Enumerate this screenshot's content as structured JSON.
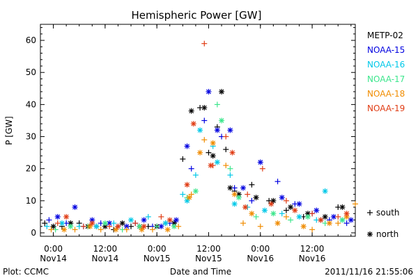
{
  "chart_data": {
    "type": "scatter",
    "title": "Hemispheric Power [GW]",
    "xlabel": "Date and Time",
    "ylabel": "P [GW]",
    "xlim": [
      "2011-11-13T21:00",
      "2011-11-16T22:00"
    ],
    "ylim": [
      0,
      65
    ],
    "y_ticks": [
      0,
      10,
      20,
      30,
      40,
      50,
      60
    ],
    "x_ticks": [
      {
        "time": "2011-11-14T00:00",
        "label1": "0:00",
        "label2": "Nov14"
      },
      {
        "time": "2011-11-14T12:00",
        "label1": "12:00",
        "label2": "Nov14"
      },
      {
        "time": "2011-11-15T00:00",
        "label1": "0:00",
        "label2": "Nov15"
      },
      {
        "time": "2011-11-15T12:00",
        "label1": "12:00",
        "label2": "Nov15"
      },
      {
        "time": "2011-11-16T00:00",
        "label1": "0:00",
        "label2": "Nov16"
      },
      {
        "time": "2011-11-16T12:00",
        "label1": "12:00",
        "label2": "Nov16"
      }
    ],
    "marker_legend": [
      {
        "symbol": "+",
        "label": "south"
      },
      {
        "symbol": "*",
        "label": "north"
      }
    ],
    "series": [
      {
        "name": "METP-02",
        "color": "#000000",
        "south": [
          [
            "2011-11-13T22:00",
            3
          ],
          [
            "2011-11-14T02:00",
            2
          ],
          [
            "2011-11-14T06:00",
            3
          ],
          [
            "2011-11-14T10:00",
            2
          ],
          [
            "2011-11-14T14:00",
            1
          ],
          [
            "2011-11-14T18:00",
            2
          ],
          [
            "2011-11-14T22:00",
            2
          ],
          [
            "2011-11-15T02:00",
            3
          ],
          [
            "2011-11-15T06:00",
            23
          ],
          [
            "2011-11-15T10:00",
            39
          ],
          [
            "2011-11-15T12:00",
            25
          ],
          [
            "2011-11-15T14:00",
            33
          ],
          [
            "2011-11-15T16:00",
            26
          ],
          [
            "2011-11-15T18:00",
            13
          ],
          [
            "2011-11-15T22:00",
            15
          ],
          [
            "2011-11-16T02:00",
            10
          ],
          [
            "2011-11-16T06:00",
            7
          ],
          [
            "2011-11-16T10:00",
            5
          ],
          [
            "2011-11-16T14:00",
            4
          ],
          [
            "2011-11-16T18:00",
            8
          ]
        ],
        "north": [
          [
            "2011-11-14T00:00",
            2
          ],
          [
            "2011-11-14T04:00",
            3
          ],
          [
            "2011-11-14T08:00",
            2
          ],
          [
            "2011-11-14T12:00",
            2
          ],
          [
            "2011-11-14T16:00",
            3
          ],
          [
            "2011-11-14T20:00",
            2
          ],
          [
            "2011-11-15T00:00",
            2
          ],
          [
            "2011-11-15T04:00",
            3
          ],
          [
            "2011-11-15T08:00",
            38
          ],
          [
            "2011-11-15T11:00",
            39
          ],
          [
            "2011-11-15T13:00",
            24
          ],
          [
            "2011-11-15T15:00",
            44
          ],
          [
            "2011-11-15T17:00",
            14
          ],
          [
            "2011-11-15T19:00",
            12
          ],
          [
            "2011-11-15T23:00",
            11
          ],
          [
            "2011-11-16T03:00",
            10
          ],
          [
            "2011-11-16T07:00",
            8
          ],
          [
            "2011-11-16T11:00",
            6
          ],
          [
            "2011-11-16T15:00",
            5
          ],
          [
            "2011-11-16T19:00",
            8
          ]
        ]
      },
      {
        "name": "NOAA-15",
        "color": "#0000e0",
        "south": [
          [
            "2011-11-13T23:00",
            4
          ],
          [
            "2011-11-14T03:00",
            3
          ],
          [
            "2011-11-14T07:00",
            2
          ],
          [
            "2011-11-14T11:00",
            3
          ],
          [
            "2011-11-14T15:00",
            2
          ],
          [
            "2011-11-14T19:00",
            3
          ],
          [
            "2011-11-14T23:00",
            2
          ],
          [
            "2011-11-15T03:00",
            3
          ],
          [
            "2011-11-15T08:00",
            20
          ],
          [
            "2011-11-15T11:00",
            35
          ],
          [
            "2011-11-15T15:00",
            30
          ],
          [
            "2011-11-15T18:00",
            14
          ],
          [
            "2011-11-15T22:00",
            10
          ],
          [
            "2011-11-16T04:00",
            16
          ],
          [
            "2011-11-16T08:00",
            9
          ],
          [
            "2011-11-16T12:00",
            6
          ],
          [
            "2011-11-16T16:00",
            4
          ],
          [
            "2011-11-16T20:00",
            3
          ]
        ],
        "north": [
          [
            "2011-11-14T01:00",
            5
          ],
          [
            "2011-11-14T05:00",
            8
          ],
          [
            "2011-11-14T09:00",
            4
          ],
          [
            "2011-11-14T13:00",
            3
          ],
          [
            "2011-11-14T17:00",
            2
          ],
          [
            "2011-11-14T21:00",
            4
          ],
          [
            "2011-11-15T01:00",
            2
          ],
          [
            "2011-11-15T04:30",
            4
          ],
          [
            "2011-11-15T07:00",
            27
          ],
          [
            "2011-11-15T12:00",
            44
          ],
          [
            "2011-11-15T14:00",
            32
          ],
          [
            "2011-11-15T17:00",
            32
          ],
          [
            "2011-11-15T20:00",
            14
          ],
          [
            "2011-11-16T00:00",
            22
          ],
          [
            "2011-11-16T05:00",
            11
          ],
          [
            "2011-11-16T09:00",
            9
          ],
          [
            "2011-11-16T13:00",
            7
          ],
          [
            "2011-11-16T17:00",
            5
          ],
          [
            "2011-11-16T21:00",
            4
          ]
        ]
      },
      {
        "name": "NOAA-16",
        "color": "#00c8e8",
        "south": [
          [
            "2011-11-13T22:30",
            2
          ],
          [
            "2011-11-14T06:00",
            2
          ],
          [
            "2011-11-14T14:00",
            3
          ],
          [
            "2011-11-14T22:00",
            5
          ],
          [
            "2011-11-15T06:00",
            12
          ],
          [
            "2011-11-15T09:00",
            18
          ],
          [
            "2011-11-15T13:00",
            27
          ],
          [
            "2011-11-15T17:00",
            18
          ],
          [
            "2011-11-15T21:00",
            8
          ],
          [
            "2011-11-16T05:00",
            6
          ],
          [
            "2011-11-16T13:00",
            4
          ]
        ],
        "north": [
          [
            "2011-11-14T02:00",
            3
          ],
          [
            "2011-11-14T10:00",
            2
          ],
          [
            "2011-11-14T18:00",
            4
          ],
          [
            "2011-11-15T02:00",
            3
          ],
          [
            "2011-11-15T07:00",
            10
          ],
          [
            "2011-11-15T10:00",
            32
          ],
          [
            "2011-11-15T14:00",
            22
          ],
          [
            "2011-11-15T18:00",
            9
          ],
          [
            "2011-11-16T01:00",
            7
          ],
          [
            "2011-11-16T09:00",
            5
          ],
          [
            "2011-11-16T15:00",
            13
          ],
          [
            "2011-11-16T19:00",
            4
          ]
        ]
      },
      {
        "name": "NOAA-17",
        "color": "#3ce68c",
        "south": [
          [
            "2011-11-14T00:30",
            1
          ],
          [
            "2011-11-14T08:00",
            2
          ],
          [
            "2011-11-14T16:00",
            1
          ],
          [
            "2011-11-15T00:00",
            2
          ],
          [
            "2011-11-15T07:00",
            11
          ],
          [
            "2011-11-15T14:00",
            40
          ],
          [
            "2011-11-15T17:00",
            20
          ],
          [
            "2011-11-15T23:00",
            5
          ],
          [
            "2011-11-16T07:00",
            4
          ],
          [
            "2011-11-16T15:00",
            3
          ]
        ],
        "north": [
          [
            "2011-11-14T04:00",
            2
          ],
          [
            "2011-11-14T12:00",
            3
          ],
          [
            "2011-11-14T20:00",
            2
          ],
          [
            "2011-11-15T04:00",
            2
          ],
          [
            "2011-11-15T09:00",
            13
          ],
          [
            "2011-11-15T15:00",
            35
          ],
          [
            "2011-11-15T19:00",
            11
          ],
          [
            "2011-11-16T03:00",
            6
          ],
          [
            "2011-11-16T11:00",
            5
          ],
          [
            "2011-11-16T19:00",
            4
          ]
        ]
      },
      {
        "name": "NOAA-18",
        "color": "#f08c00",
        "south": [
          [
            "2011-11-13T23:30",
            1
          ],
          [
            "2011-11-14T05:00",
            1
          ],
          [
            "2011-11-14T11:00",
            1
          ],
          [
            "2011-11-14T17:00",
            1
          ],
          [
            "2011-11-14T23:00",
            1
          ],
          [
            "2011-11-15T05:00",
            2
          ],
          [
            "2011-11-15T08:00",
            12
          ],
          [
            "2011-11-15T11:00",
            29
          ],
          [
            "2011-11-15T16:00",
            21
          ],
          [
            "2011-11-15T20:00",
            3
          ],
          [
            "2011-11-16T00:00",
            2
          ],
          [
            "2011-11-16T06:00",
            5
          ],
          [
            "2011-11-16T12:00",
            1
          ],
          [
            "2011-11-16T18:00",
            3
          ],
          [
            "2011-11-16T22:00",
            9
          ]
        ],
        "north": [
          [
            "2011-11-14T02:30",
            1
          ],
          [
            "2011-11-14T08:30",
            2
          ],
          [
            "2011-11-14T14:30",
            1
          ],
          [
            "2011-11-14T20:30",
            1
          ],
          [
            "2011-11-15T02:30",
            1
          ],
          [
            "2011-11-15T07:30",
            11
          ],
          [
            "2011-11-15T10:00",
            25
          ],
          [
            "2011-11-15T13:00",
            28
          ],
          [
            "2011-11-15T18:00",
            12
          ],
          [
            "2011-11-15T22:00",
            6
          ],
          [
            "2011-11-16T04:00",
            3
          ],
          [
            "2011-11-16T10:00",
            2
          ],
          [
            "2011-11-16T16:00",
            3
          ],
          [
            "2011-11-16T20:00",
            5
          ]
        ]
      },
      {
        "name": "NOAA-19",
        "color": "#e03c14",
        "south": [
          [
            "2011-11-14T01:00",
            3
          ],
          [
            "2011-11-14T07:00",
            2
          ],
          [
            "2011-11-14T13:00",
            2
          ],
          [
            "2011-11-14T19:00",
            3
          ],
          [
            "2011-11-15T01:00",
            5
          ],
          [
            "2011-11-15T11:00",
            59
          ],
          [
            "2011-11-15T13:00",
            21
          ],
          [
            "2011-11-15T16:00",
            30
          ],
          [
            "2011-11-15T21:00",
            12
          ],
          [
            "2011-11-16T00:30",
            20
          ],
          [
            "2011-11-16T06:00",
            10
          ],
          [
            "2011-11-16T12:00",
            6
          ],
          [
            "2011-11-16T18:00",
            5
          ]
        ],
        "north": [
          [
            "2011-11-14T03:00",
            5
          ],
          [
            "2011-11-14T09:00",
            3
          ],
          [
            "2011-11-14T15:00",
            2
          ],
          [
            "2011-11-14T21:00",
            2
          ],
          [
            "2011-11-15T03:00",
            4
          ],
          [
            "2011-11-15T07:00",
            15
          ],
          [
            "2011-11-15T08:30",
            34
          ],
          [
            "2011-11-15T12:30",
            21
          ],
          [
            "2011-11-15T17:30",
            25
          ],
          [
            "2011-11-15T20:30",
            8
          ],
          [
            "2011-11-16T02:30",
            9
          ],
          [
            "2011-11-16T08:00",
            7
          ],
          [
            "2011-11-16T14:00",
            4
          ],
          [
            "2011-11-16T20:00",
            6
          ]
        ]
      }
    ]
  },
  "footer": {
    "left": "Plot: CCMC",
    "right": "2011/11/16 21:55:06"
  }
}
